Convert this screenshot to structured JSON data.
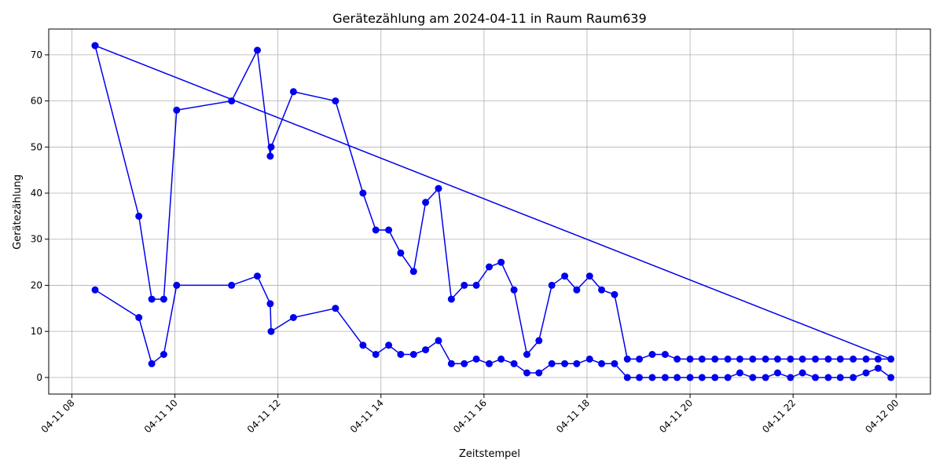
{
  "chart_data": {
    "type": "line",
    "title": "Gerätezählung am 2024-04-11 in Raum Raum639",
    "xlabel": "Zeitstempel",
    "ylabel": "Gerätezählung",
    "xlim": [
      "2024-04-11 07:33",
      "2024-04-12 00:40"
    ],
    "ylim": [
      -3.6,
      75.6
    ],
    "x_ticks": [
      {
        "at": "2024-04-11 08:00",
        "label": "04-11 08"
      },
      {
        "at": "2024-04-11 10:00",
        "label": "04-11 10"
      },
      {
        "at": "2024-04-11 12:00",
        "label": "04-11 12"
      },
      {
        "at": "2024-04-11 14:00",
        "label": "04-11 14"
      },
      {
        "at": "2024-04-11 16:00",
        "label": "04-11 16"
      },
      {
        "at": "2024-04-11 18:00",
        "label": "04-11 18"
      },
      {
        "at": "2024-04-11 20:00",
        "label": "04-11 20"
      },
      {
        "at": "2024-04-11 22:00",
        "label": "04-11 22"
      },
      {
        "at": "2024-04-12 00:00",
        "label": "04-12 00"
      }
    ],
    "y_ticks": [
      0,
      10,
      20,
      30,
      40,
      50,
      60,
      70
    ],
    "grid": true,
    "color": "#0000ee",
    "series": [
      {
        "x": [
          "2024-04-11 08:27",
          "2024-04-11 09:18",
          "2024-04-11 09:33",
          "2024-04-11 09:47",
          "2024-04-11 10:02",
          "2024-04-11 11:06",
          "2024-04-11 11:36",
          "2024-04-11 11:51",
          "2024-04-11 11:52",
          "2024-04-11 12:18",
          "2024-04-11 13:07",
          "2024-04-11 13:39",
          "2024-04-11 13:54",
          "2024-04-11 14:09",
          "2024-04-11 14:23",
          "2024-04-11 14:38",
          "2024-04-11 14:52",
          "2024-04-11 15:07",
          "2024-04-11 15:22",
          "2024-04-11 15:37",
          "2024-04-11 15:51",
          "2024-04-11 16:06",
          "2024-04-11 16:20",
          "2024-04-11 16:35",
          "2024-04-11 16:50",
          "2024-04-11 17:04",
          "2024-04-11 17:19",
          "2024-04-11 17:34",
          "2024-04-11 17:48",
          "2024-04-11 18:03",
          "2024-04-11 18:17",
          "2024-04-11 18:32",
          "2024-04-11 18:47",
          "2024-04-11 19:01",
          "2024-04-11 19:16",
          "2024-04-11 19:31",
          "2024-04-11 19:45",
          "2024-04-11 20:00",
          "2024-04-11 20:14",
          "2024-04-11 20:29",
          "2024-04-11 20:44",
          "2024-04-11 20:58",
          "2024-04-11 21:13",
          "2024-04-11 21:28",
          "2024-04-11 21:42",
          "2024-04-11 21:57",
          "2024-04-11 22:11",
          "2024-04-11 22:26",
          "2024-04-11 22:41",
          "2024-04-11 22:55",
          "2024-04-11 23:10",
          "2024-04-11 23:25",
          "2024-04-11 23:39",
          "2024-04-11 23:54"
        ],
        "y": [
          19,
          13,
          3,
          5,
          20,
          20,
          22,
          16,
          10,
          13,
          15,
          7,
          5,
          7,
          5,
          5,
          6,
          8,
          3,
          3,
          4,
          3,
          4,
          3,
          1,
          1,
          3,
          3,
          3,
          4,
          3,
          3,
          0,
          0,
          0,
          0,
          0,
          0,
          0,
          0,
          0,
          1,
          0,
          0,
          1,
          0,
          1,
          0,
          0,
          0,
          0,
          1,
          2,
          0
        ]
      },
      {
        "x": [
          "2024-04-11 08:27",
          "2024-04-11 09:18",
          "2024-04-11 09:33",
          "2024-04-11 09:47",
          "2024-04-11 10:02",
          "2024-04-11 11:06",
          "2024-04-11 11:36",
          "2024-04-11 11:51",
          "2024-04-11 11:52",
          "2024-04-11 12:18",
          "2024-04-11 13:07",
          "2024-04-11 13:39",
          "2024-04-11 13:54",
          "2024-04-11 14:09",
          "2024-04-11 14:23",
          "2024-04-11 14:38",
          "2024-04-11 14:52",
          "2024-04-11 15:07",
          "2024-04-11 15:22",
          "2024-04-11 15:37",
          "2024-04-11 15:51",
          "2024-04-11 16:06",
          "2024-04-11 16:20",
          "2024-04-11 16:35",
          "2024-04-11 16:50",
          "2024-04-11 17:04",
          "2024-04-11 17:19",
          "2024-04-11 17:34",
          "2024-04-11 17:48",
          "2024-04-11 18:03",
          "2024-04-11 18:17",
          "2024-04-11 18:32",
          "2024-04-11 18:47",
          "2024-04-11 19:01",
          "2024-04-11 19:16",
          "2024-04-11 19:31",
          "2024-04-11 19:45",
          "2024-04-11 20:00",
          "2024-04-11 20:14",
          "2024-04-11 20:29",
          "2024-04-11 20:44",
          "2024-04-11 20:58",
          "2024-04-11 21:13",
          "2024-04-11 21:28",
          "2024-04-11 21:42",
          "2024-04-11 21:57",
          "2024-04-11 22:11",
          "2024-04-11 22:26",
          "2024-04-11 22:41",
          "2024-04-11 22:55",
          "2024-04-11 23:10",
          "2024-04-11 23:25",
          "2024-04-11 23:39",
          "2024-04-11 23:54",
          "2024-04-11 08:27"
        ],
        "y": [
          72,
          35,
          17,
          17,
          58,
          60,
          71,
          48,
          50,
          62,
          60,
          40,
          32,
          32,
          27,
          23,
          38,
          41,
          17,
          20,
          20,
          24,
          25,
          19,
          5,
          8,
          20,
          22,
          19,
          22,
          19,
          18,
          4,
          4,
          5,
          5,
          4,
          4,
          4,
          4,
          4,
          4,
          4,
          4,
          4,
          4,
          4,
          4,
          4,
          4,
          4,
          4,
          4,
          4,
          72
        ]
      }
    ]
  }
}
